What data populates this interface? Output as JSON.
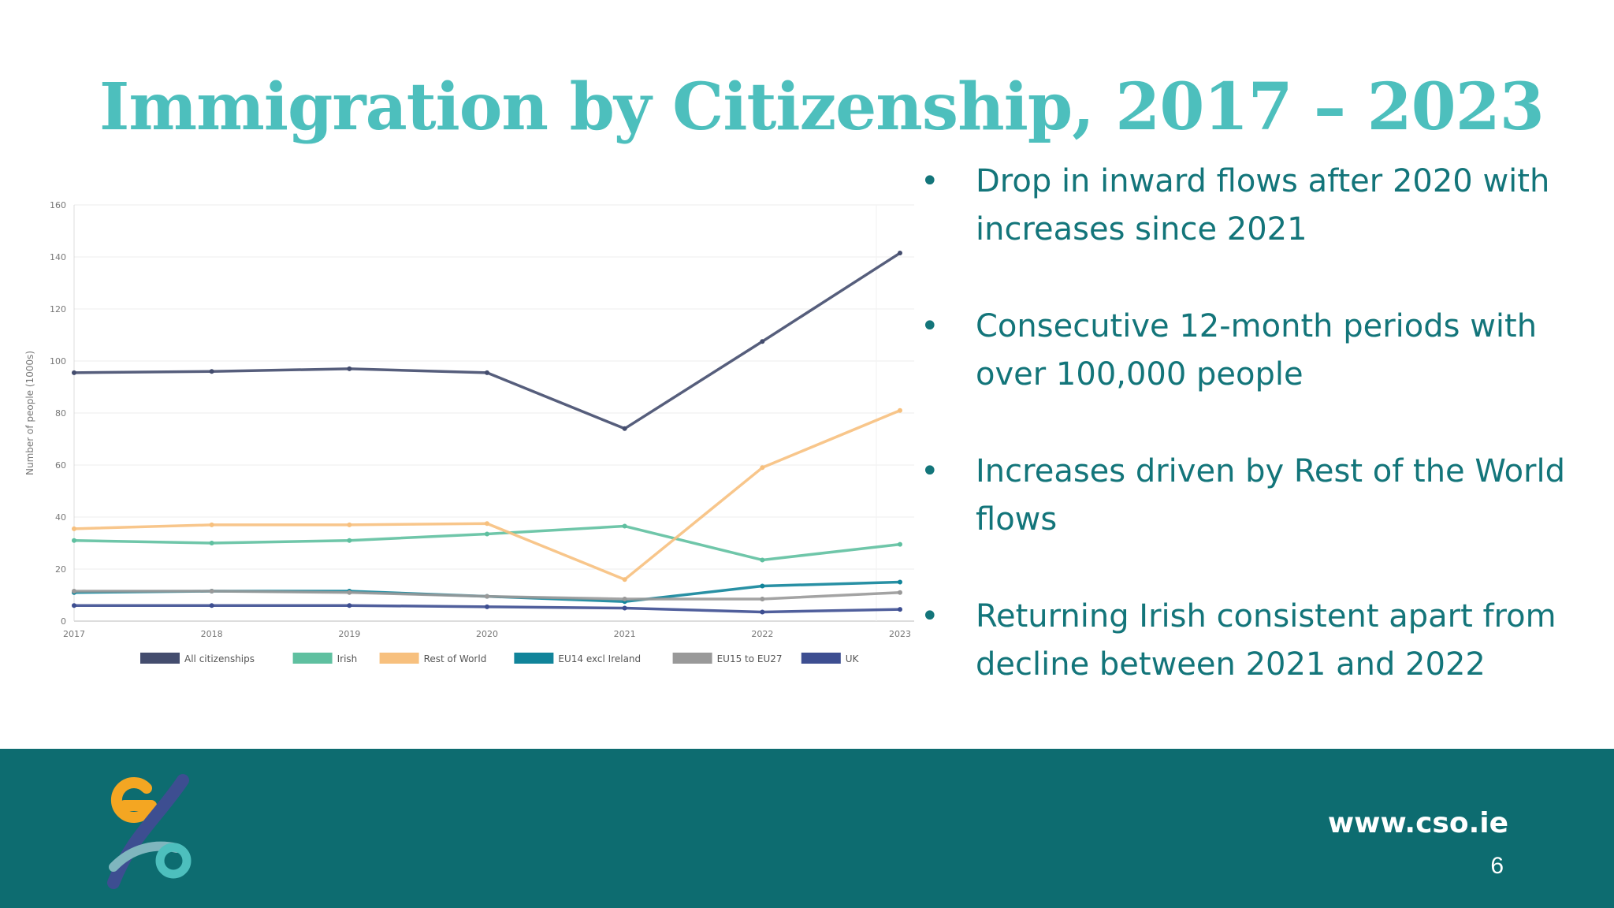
{
  "slide": {
    "title": "Immigration by Citizenship, 2017 – 2023",
    "bullets": [
      "Drop in inward flows after 2020 with increases since 2021",
      "Consecutive 12-month periods with over 100,000 people",
      "Increases driven by Rest of the World flows",
      "Returning Irish consistent apart from decline between 2021 and 2022"
    ],
    "footer": {
      "url": "www.cso.ie",
      "page_number": "6"
    },
    "colors": {
      "accent": "#4dbfbd",
      "text": "#13757a",
      "footer_bg": "#0d6c70"
    }
  },
  "chart_data": {
    "type": "line",
    "title": "",
    "xlabel": "",
    "ylabel": "Number of people (1000s)",
    "x": [
      "2017",
      "2018",
      "2019",
      "2020",
      "2021",
      "2022",
      "2023"
    ],
    "ylim": [
      0,
      160
    ],
    "yticks": [
      0,
      20,
      40,
      60,
      80,
      100,
      120,
      140,
      160
    ],
    "grid": true,
    "legend": "bottom",
    "series": [
      {
        "name": "All citizenships",
        "color": "#444d6e",
        "values": [
          95.5,
          96,
          97,
          95.5,
          74,
          107.5,
          141.5
        ]
      },
      {
        "name": "Irish",
        "color": "#5fc0a0",
        "values": [
          31,
          30,
          31,
          33.5,
          36.5,
          23.5,
          29.5
        ]
      },
      {
        "name": "Rest of World",
        "color": "#f7c07e",
        "values": [
          35.5,
          37,
          37,
          37.5,
          16,
          59,
          81
        ]
      },
      {
        "name": "EU14 excl Ireland",
        "color": "#11849a",
        "values": [
          11,
          11.5,
          11.5,
          9.5,
          7.5,
          13.5,
          15
        ]
      },
      {
        "name": "EU15 to EU27",
        "color": "#999999",
        "values": [
          11.5,
          11.5,
          11,
          9.5,
          8.5,
          8.5,
          11
        ]
      },
      {
        "name": "UK",
        "color": "#3d4e91",
        "values": [
          6,
          6,
          6,
          5.5,
          5,
          3.5,
          4.5
        ]
      }
    ]
  }
}
